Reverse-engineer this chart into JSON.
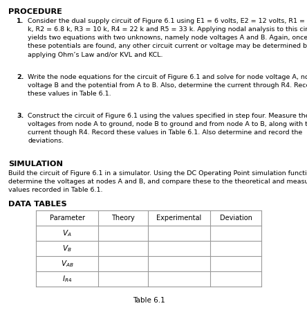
{
  "title": "PROCEDURE",
  "simulation_title": "SIMULATION",
  "data_tables_title": "DATA TABLES",
  "table_headers": [
    "Parameter",
    "Theory",
    "Experimental",
    "Deviation"
  ],
  "table_row_labels": [
    "$V_A$",
    "$V_B$",
    "$V_{AB}$",
    "$I_{R4}$"
  ],
  "table_caption": "Table 6.1",
  "bg_color": "#ffffff",
  "text_color": "#000000"
}
